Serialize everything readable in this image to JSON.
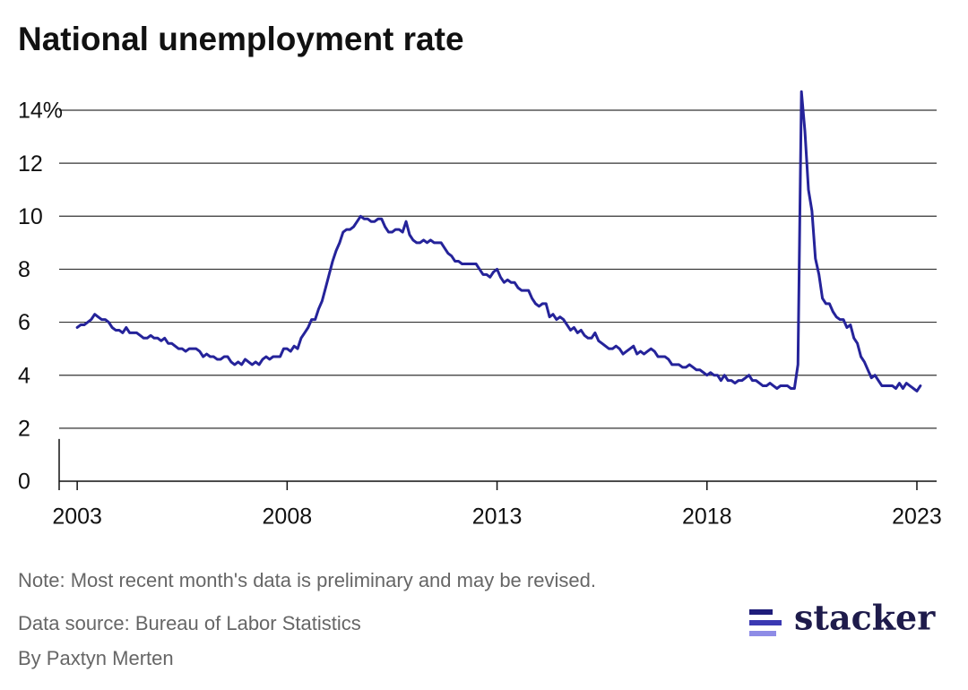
{
  "chart_data": {
    "type": "line",
    "title": "National unemployment rate",
    "note": "Note: Most recent month's data is preliminary and may be revised.",
    "source": "Data source: Bureau of Labor Statistics",
    "byline": "By Paxtyn Merten",
    "color": "#25239a",
    "xlim": [
      2002.57,
      2023.47
    ],
    "xticks": [
      2003,
      2008,
      2013,
      2018,
      2023
    ],
    "ylim": [
      0,
      14
    ],
    "yticks": [
      0,
      2,
      4,
      6,
      8,
      10,
      12,
      {
        "value": 14,
        "label": "14%"
      }
    ],
    "grid": true,
    "x": [
      2003,
      2003.083,
      2003.167,
      2003.25,
      2003.333,
      2003.417,
      2003.5,
      2003.583,
      2003.667,
      2003.75,
      2003.833,
      2003.917,
      2004,
      2004.083,
      2004.167,
      2004.25,
      2004.333,
      2004.417,
      2004.5,
      2004.583,
      2004.667,
      2004.75,
      2004.833,
      2004.917,
      2005,
      2005.083,
      2005.167,
      2005.25,
      2005.333,
      2005.417,
      2005.5,
      2005.583,
      2005.667,
      2005.75,
      2005.833,
      2005.917,
      2006,
      2006.083,
      2006.167,
      2006.25,
      2006.333,
      2006.417,
      2006.5,
      2006.583,
      2006.667,
      2006.75,
      2006.833,
      2006.917,
      2007,
      2007.083,
      2007.167,
      2007.25,
      2007.333,
      2007.417,
      2007.5,
      2007.583,
      2007.667,
      2007.75,
      2007.833,
      2007.917,
      2008,
      2008.083,
      2008.167,
      2008.25,
      2008.333,
      2008.417,
      2008.5,
      2008.583,
      2008.667,
      2008.75,
      2008.833,
      2008.917,
      2009,
      2009.083,
      2009.167,
      2009.25,
      2009.333,
      2009.417,
      2009.5,
      2009.583,
      2009.667,
      2009.75,
      2009.833,
      2009.917,
      2010,
      2010.083,
      2010.167,
      2010.25,
      2010.333,
      2010.417,
      2010.5,
      2010.583,
      2010.667,
      2010.75,
      2010.833,
      2010.917,
      2011,
      2011.083,
      2011.167,
      2011.25,
      2011.333,
      2011.417,
      2011.5,
      2011.583,
      2011.667,
      2011.75,
      2011.833,
      2011.917,
      2012,
      2012.083,
      2012.167,
      2012.25,
      2012.333,
      2012.417,
      2012.5,
      2012.583,
      2012.667,
      2012.75,
      2012.833,
      2012.917,
      2013,
      2013.083,
      2013.167,
      2013.25,
      2013.333,
      2013.417,
      2013.5,
      2013.583,
      2013.667,
      2013.75,
      2013.833,
      2013.917,
      2014,
      2014.083,
      2014.167,
      2014.25,
      2014.333,
      2014.417,
      2014.5,
      2014.583,
      2014.667,
      2014.75,
      2014.833,
      2014.917,
      2015,
      2015.083,
      2015.167,
      2015.25,
      2015.333,
      2015.417,
      2015.5,
      2015.583,
      2015.667,
      2015.75,
      2015.833,
      2015.917,
      2016,
      2016.083,
      2016.167,
      2016.25,
      2016.333,
      2016.417,
      2016.5,
      2016.583,
      2016.667,
      2016.75,
      2016.833,
      2016.917,
      2017,
      2017.083,
      2017.167,
      2017.25,
      2017.333,
      2017.417,
      2017.5,
      2017.583,
      2017.667,
      2017.75,
      2017.833,
      2017.917,
      2018,
      2018.083,
      2018.167,
      2018.25,
      2018.333,
      2018.417,
      2018.5,
      2018.583,
      2018.667,
      2018.75,
      2018.833,
      2018.917,
      2019,
      2019.083,
      2019.167,
      2019.25,
      2019.333,
      2019.417,
      2019.5,
      2019.583,
      2019.667,
      2019.75,
      2019.833,
      2019.917,
      2020,
      2020.083,
      2020.167,
      2020.25,
      2020.333,
      2020.417,
      2020.5,
      2020.583,
      2020.667,
      2020.75,
      2020.833,
      2020.917,
      2021,
      2021.083,
      2021.167,
      2021.25,
      2021.333,
      2021.417,
      2021.5,
      2021.583,
      2021.667,
      2021.75,
      2021.833,
      2021.917,
      2022,
      2022.083,
      2022.167,
      2022.25,
      2022.333,
      2022.417,
      2022.5,
      2022.583,
      2022.667,
      2022.75,
      2022.833,
      2022.917,
      2023,
      2023.083
    ],
    "values": [
      5.8,
      5.9,
      5.9,
      6.0,
      6.1,
      6.3,
      6.2,
      6.1,
      6.1,
      6.0,
      5.8,
      5.7,
      5.7,
      5.6,
      5.8,
      5.6,
      5.6,
      5.6,
      5.5,
      5.4,
      5.4,
      5.5,
      5.4,
      5.4,
      5.3,
      5.4,
      5.2,
      5.2,
      5.1,
      5.0,
      5.0,
      4.9,
      5.0,
      5.0,
      5.0,
      4.9,
      4.7,
      4.8,
      4.7,
      4.7,
      4.6,
      4.6,
      4.7,
      4.7,
      4.5,
      4.4,
      4.5,
      4.4,
      4.6,
      4.5,
      4.4,
      4.5,
      4.4,
      4.6,
      4.7,
      4.6,
      4.7,
      4.7,
      4.7,
      5.0,
      5.0,
      4.9,
      5.1,
      5.0,
      5.4,
      5.6,
      5.8,
      6.1,
      6.1,
      6.5,
      6.8,
      7.3,
      7.8,
      8.3,
      8.7,
      9.0,
      9.4,
      9.5,
      9.5,
      9.6,
      9.8,
      10.0,
      9.9,
      9.9,
      9.8,
      9.8,
      9.9,
      9.9,
      9.6,
      9.4,
      9.4,
      9.5,
      9.5,
      9.4,
      9.8,
      9.3,
      9.1,
      9.0,
      9.0,
      9.1,
      9.0,
      9.1,
      9.0,
      9.0,
      9.0,
      8.8,
      8.6,
      8.5,
      8.3,
      8.3,
      8.2,
      8.2,
      8.2,
      8.2,
      8.2,
      8.0,
      7.8,
      7.8,
      7.7,
      7.9,
      8.0,
      7.7,
      7.5,
      7.6,
      7.5,
      7.5,
      7.3,
      7.2,
      7.2,
      7.2,
      6.9,
      6.7,
      6.6,
      6.7,
      6.7,
      6.2,
      6.3,
      6.1,
      6.2,
      6.1,
      5.9,
      5.7,
      5.8,
      5.6,
      5.7,
      5.5,
      5.4,
      5.4,
      5.6,
      5.3,
      5.2,
      5.1,
      5.0,
      5.0,
      5.1,
      5.0,
      4.8,
      4.9,
      5.0,
      5.1,
      4.8,
      4.9,
      4.8,
      4.9,
      5.0,
      4.9,
      4.7,
      4.7,
      4.7,
      4.6,
      4.4,
      4.4,
      4.4,
      4.3,
      4.3,
      4.4,
      4.3,
      4.2,
      4.2,
      4.1,
      4.0,
      4.1,
      4.0,
      4.0,
      3.8,
      4.0,
      3.8,
      3.8,
      3.7,
      3.8,
      3.8,
      3.9,
      4.0,
      3.8,
      3.8,
      3.7,
      3.6,
      3.6,
      3.7,
      3.6,
      3.5,
      3.6,
      3.6,
      3.6,
      3.5,
      3.5,
      4.4,
      14.7,
      13.2,
      11.0,
      10.2,
      8.4,
      7.8,
      6.9,
      6.7,
      6.7,
      6.4,
      6.2,
      6.1,
      6.1,
      5.8,
      5.9,
      5.4,
      5.2,
      4.7,
      4.5,
      4.2,
      3.9,
      4.0,
      3.8,
      3.6,
      3.6,
      3.6,
      3.6,
      3.5,
      3.7,
      3.5,
      3.7,
      3.6,
      3.5,
      3.4,
      3.6
    ]
  },
  "brand": "stacker"
}
